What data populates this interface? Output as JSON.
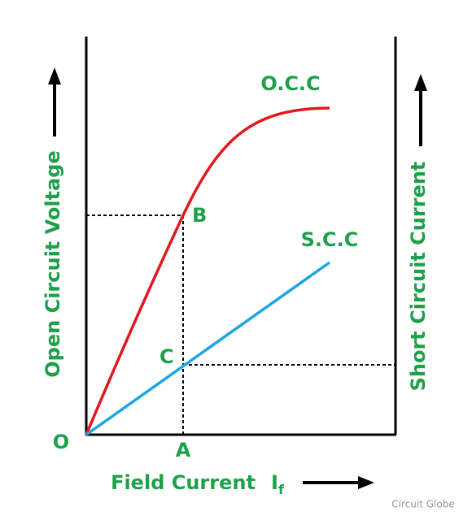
{
  "points": {
    "origin": "O",
    "a": "A",
    "b": "B",
    "c": "C"
  },
  "curves": {
    "occ": "O.C.C",
    "scc": "S.C.C"
  },
  "axes": {
    "left": "Open Circuit Voltage",
    "right": "Short Circuit Current",
    "bottom": "Field Current",
    "bottom_symbol": "I",
    "bottom_subscript": "f"
  },
  "watermark": "Circuit Globe"
}
